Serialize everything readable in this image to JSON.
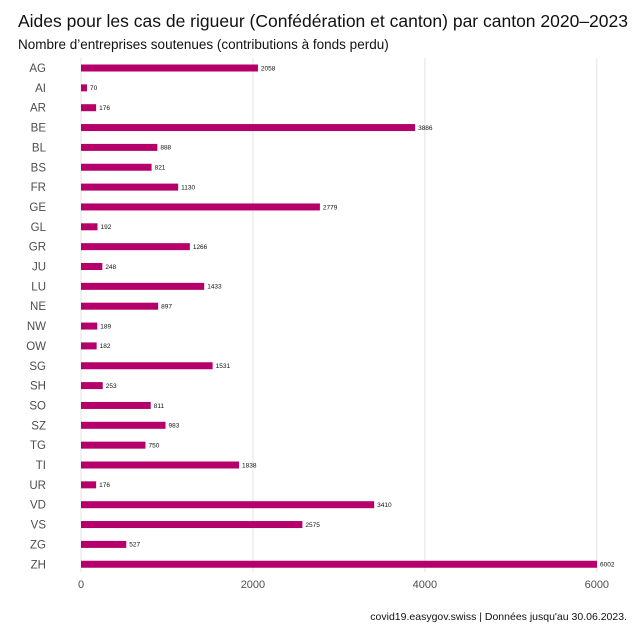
{
  "title": "Aides pour les cas de rigueur (Confédération et canton) par canton 2020–2023",
  "subtitle": "Nombre d’entreprises soutenues (contributions à fonds perdu)",
  "caption": "covid19.easygov.swiss | Données jusqu'au 30.06.2023.",
  "colors": {
    "bar": "#b5006b",
    "grid": "#e3e3e3"
  },
  "chart_data": {
    "type": "bar",
    "orientation": "horizontal",
    "categories": [
      "AG",
      "AI",
      "AR",
      "BE",
      "BL",
      "BS",
      "FR",
      "GE",
      "GL",
      "GR",
      "JU",
      "LU",
      "NE",
      "NW",
      "OW",
      "SG",
      "SH",
      "SO",
      "SZ",
      "TG",
      "TI",
      "UR",
      "VD",
      "VS",
      "ZG",
      "ZH"
    ],
    "values": [
      2058,
      70,
      176,
      3886,
      888,
      821,
      1130,
      2779,
      192,
      1266,
      248,
      1433,
      897,
      189,
      182,
      1531,
      253,
      811,
      983,
      750,
      1838,
      176,
      3410,
      2575,
      527,
      6002
    ],
    "xticks": [
      0,
      2000,
      4000,
      6000
    ],
    "xlim": [
      0,
      6002
    ],
    "grid": "vertical",
    "data_labels": true
  }
}
